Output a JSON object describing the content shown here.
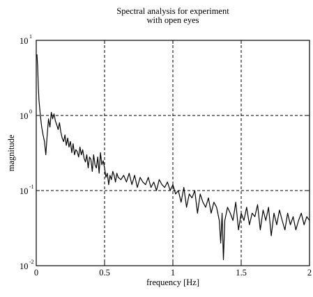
{
  "chart_data": {
    "type": "line",
    "title": [
      "Spectral analysis for experiment",
      "with open eyes"
    ],
    "xlabel": "frequency [Hz]",
    "ylabel": "magnitude",
    "xlim": [
      0,
      2
    ],
    "ylim": [
      0.01,
      10
    ],
    "yscale": "log",
    "grid": true,
    "x_ticks": [
      {
        "value": 0,
        "label": "0"
      },
      {
        "value": 0.5,
        "label": "0.5"
      },
      {
        "value": 1,
        "label": "1"
      },
      {
        "value": 1.5,
        "label": "1.5"
      },
      {
        "value": 2,
        "label": "2"
      }
    ],
    "y_ticks": [
      {
        "value": 10,
        "base": "10",
        "exp": "1"
      },
      {
        "value": 1,
        "base": "10",
        "exp": "0"
      },
      {
        "value": 0.1,
        "base": "10",
        "exp": "-1"
      },
      {
        "value": 0.01,
        "base": "10",
        "exp": "-2"
      }
    ],
    "series": [
      {
        "x": [
          0.005,
          0.01,
          0.015,
          0.02,
          0.03,
          0.04,
          0.05,
          0.06,
          0.07,
          0.08,
          0.09,
          0.1,
          0.11,
          0.12,
          0.13,
          0.14,
          0.15,
          0.16,
          0.17,
          0.18,
          0.19,
          0.2,
          0.21,
          0.22,
          0.23,
          0.24,
          0.25,
          0.26,
          0.27,
          0.28,
          0.29,
          0.3,
          0.31,
          0.32,
          0.33,
          0.34,
          0.35,
          0.36,
          0.37,
          0.38,
          0.39,
          0.4,
          0.41,
          0.42,
          0.43,
          0.44,
          0.45,
          0.46,
          0.47,
          0.48,
          0.49,
          0.5,
          0.51,
          0.52,
          0.53,
          0.54,
          0.55,
          0.56,
          0.57,
          0.58,
          0.59,
          0.6,
          0.62,
          0.64,
          0.66,
          0.68,
          0.7,
          0.72,
          0.74,
          0.76,
          0.78,
          0.8,
          0.82,
          0.84,
          0.86,
          0.88,
          0.9,
          0.92,
          0.94,
          0.96,
          0.98,
          1.0,
          1.02,
          1.04,
          1.06,
          1.08,
          1.1,
          1.12,
          1.14,
          1.16,
          1.18,
          1.2,
          1.22,
          1.24,
          1.26,
          1.28,
          1.3,
          1.32,
          1.34,
          1.35,
          1.36,
          1.37,
          1.38,
          1.4,
          1.42,
          1.44,
          1.46,
          1.48,
          1.5,
          1.52,
          1.54,
          1.56,
          1.58,
          1.6,
          1.62,
          1.64,
          1.66,
          1.68,
          1.7,
          1.72,
          1.74,
          1.76,
          1.78,
          1.8,
          1.82,
          1.84,
          1.86,
          1.88,
          1.9,
          1.92,
          1.94,
          1.96,
          1.98,
          2.0
        ],
        "y": [
          6.5,
          4.5,
          2.5,
          1.6,
          1.0,
          0.7,
          0.55,
          0.45,
          0.3,
          0.55,
          0.9,
          0.7,
          1.1,
          0.9,
          1.05,
          0.85,
          0.75,
          0.65,
          0.8,
          0.6,
          0.5,
          0.45,
          0.55,
          0.4,
          0.5,
          0.38,
          0.45,
          0.32,
          0.42,
          0.3,
          0.35,
          0.33,
          0.28,
          0.38,
          0.3,
          0.35,
          0.27,
          0.24,
          0.3,
          0.2,
          0.28,
          0.26,
          0.18,
          0.3,
          0.22,
          0.2,
          0.28,
          0.17,
          0.32,
          0.22,
          0.25,
          0.2,
          0.15,
          0.17,
          0.12,
          0.16,
          0.14,
          0.18,
          0.16,
          0.13,
          0.17,
          0.15,
          0.14,
          0.16,
          0.13,
          0.17,
          0.12,
          0.16,
          0.11,
          0.15,
          0.13,
          0.12,
          0.15,
          0.11,
          0.13,
          0.1,
          0.14,
          0.12,
          0.11,
          0.13,
          0.1,
          0.12,
          0.09,
          0.1,
          0.07,
          0.11,
          0.06,
          0.09,
          0.08,
          0.1,
          0.05,
          0.09,
          0.07,
          0.06,
          0.08,
          0.05,
          0.07,
          0.06,
          0.04,
          0.02,
          0.05,
          0.012,
          0.04,
          0.06,
          0.05,
          0.04,
          0.07,
          0.03,
          0.05,
          0.04,
          0.06,
          0.035,
          0.05,
          0.045,
          0.065,
          0.03,
          0.055,
          0.04,
          0.06,
          0.025,
          0.05,
          0.035,
          0.055,
          0.04,
          0.03,
          0.05,
          0.035,
          0.045,
          0.03,
          0.04,
          0.05,
          0.035,
          0.045,
          0.04
        ]
      }
    ]
  }
}
